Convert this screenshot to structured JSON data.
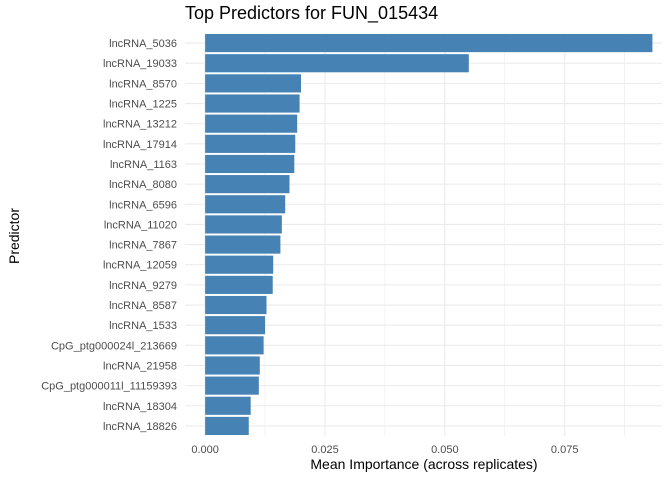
{
  "chart_data": {
    "type": "bar",
    "orientation": "horizontal",
    "title": "Top Predictors for FUN_015434",
    "xlabel": "Mean Importance (across replicates)",
    "ylabel": "Predictor",
    "categories": [
      "lncRNA_5036",
      "lncRNA_19033",
      "lncRNA_8570",
      "lncRNA_1225",
      "lncRNA_13212",
      "lncRNA_17914",
      "lncRNA_1163",
      "lncRNA_8080",
      "lncRNA_6596",
      "lncRNA_11020",
      "lncRNA_7867",
      "lncRNA_12059",
      "lncRNA_9279",
      "lncRNA_8587",
      "lncRNA_1533",
      "CpG_ptg000024l_213669",
      "lncRNA_21958",
      "CpG_ptg000011l_11159393",
      "lncRNA_18304",
      "lncRNA_18826"
    ],
    "values": [
      0.0933,
      0.055,
      0.02,
      0.0197,
      0.0192,
      0.0188,
      0.0186,
      0.0176,
      0.0167,
      0.016,
      0.0157,
      0.0142,
      0.0141,
      0.0128,
      0.0125,
      0.0122,
      0.0114,
      0.0112,
      0.0095,
      0.0091
    ],
    "xlim": [
      -0.0042,
      0.0953
    ],
    "xticks": [
      0.0,
      0.025,
      0.05,
      0.075
    ],
    "xtick_labels": [
      "0.000",
      "0.025",
      "0.050",
      "0.075"
    ],
    "grid": true,
    "legend": "none",
    "bar_color": "#4682B4",
    "grid_color": "#EBEBEB"
  }
}
